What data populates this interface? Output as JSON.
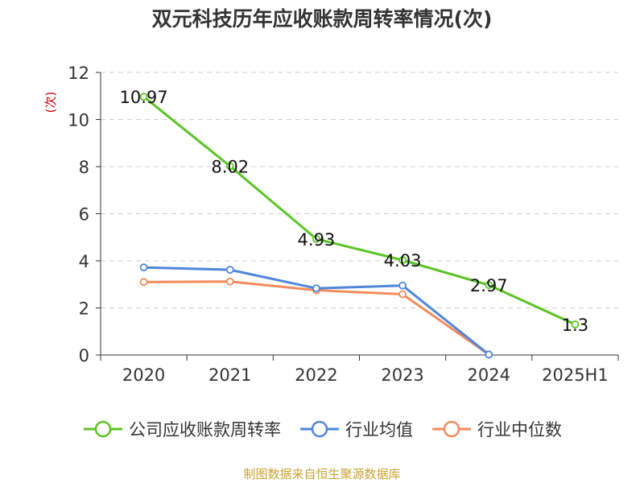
{
  "chart_data": {
    "type": "line",
    "title": "双元科技历年应收账款周转率情况(次)",
    "ylabel": "(次)",
    "xlabel": "",
    "categories": [
      "2020",
      "2021",
      "2022",
      "2023",
      "2024",
      "2025H1"
    ],
    "ylim": [
      0,
      12
    ],
    "yticks": [
      0,
      2,
      4,
      6,
      8,
      10,
      12
    ],
    "grid": true,
    "legend_position": "bottom",
    "series": [
      {
        "name": "公司应收账款周转率",
        "color": "#5bc424",
        "values": [
          10.97,
          8.02,
          4.93,
          4.03,
          2.97,
          1.3
        ],
        "labels": [
          "10.97",
          "8.02",
          "4.93",
          "4.03",
          "2.97",
          "1.3"
        ]
      },
      {
        "name": "行业均值",
        "color": "#4f86d9",
        "values": [
          3.72,
          3.62,
          2.83,
          2.95,
          0.02,
          null
        ]
      },
      {
        "name": "行业中位数",
        "color": "#f38b5c",
        "values": [
          3.1,
          3.12,
          2.75,
          2.58,
          0.02,
          null
        ]
      }
    ]
  },
  "source": "制图数据来自恒生聚源数据库"
}
